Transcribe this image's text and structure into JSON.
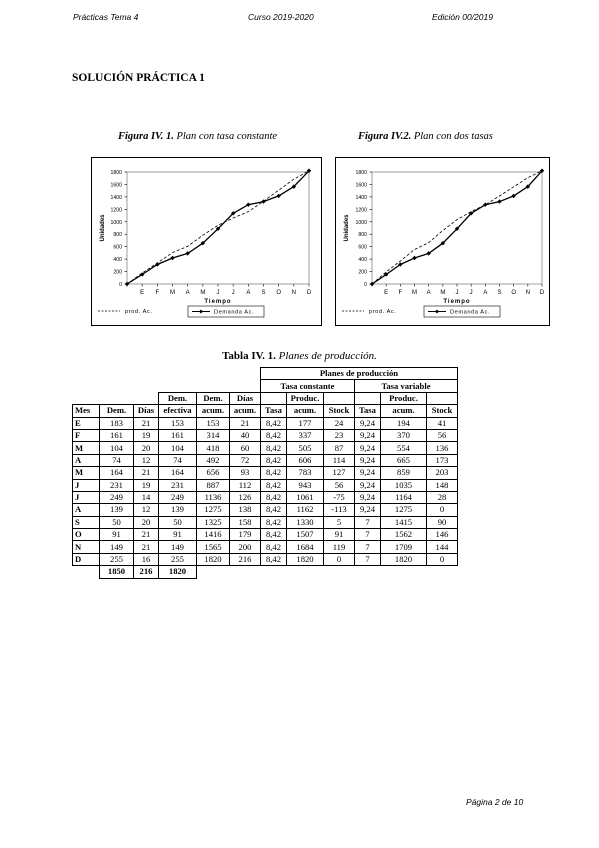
{
  "header": {
    "left": "Prácticas Tema 4",
    "center": "Curso 2019-2020",
    "right": "Edición 00/2019"
  },
  "section_title": "SOLUCIÓN PRÁCTICA 1",
  "figures": [
    {
      "label": "Figura IV. 1.",
      "caption": "Plan con tasa constante"
    },
    {
      "label": "Figura IV.2.",
      "caption": "Plan con dos tasas"
    }
  ],
  "chart_data": [
    {
      "type": "line",
      "title": "",
      "xlabel": "Tiempo",
      "ylabel": "Unidades",
      "categories": [
        "",
        "E",
        "F",
        "M",
        "A",
        "M",
        "J",
        "J",
        "A",
        "S",
        "O",
        "N",
        "D"
      ],
      "ylim": [
        0,
        1800
      ],
      "yticks": [
        0,
        200,
        400,
        600,
        800,
        1000,
        1200,
        1400,
        1600,
        1800
      ],
      "legend": [
        "prod. Ac.",
        "Demanda Ac."
      ],
      "legend_position": "bottom",
      "series": [
        {
          "name": "Demanda Ac.",
          "marker": "diamond",
          "line": "solid",
          "values": [
            0,
            153,
            314,
            418,
            492,
            656,
            887,
            1136,
            1275,
            1325,
            1416,
            1565,
            1820
          ]
        },
        {
          "name": "prod. Ac.",
          "marker": "none",
          "line": "dashed",
          "values": [
            0,
            177,
            337,
            505,
            606,
            783,
            943,
            1061,
            1162,
            1330,
            1507,
            1684,
            1820
          ]
        }
      ]
    },
    {
      "type": "line",
      "title": "",
      "xlabel": "Tiempo",
      "ylabel": "Unidades",
      "categories": [
        "",
        "E",
        "F",
        "M",
        "A",
        "M",
        "J",
        "J",
        "A",
        "S",
        "O",
        "N",
        "D"
      ],
      "ylim": [
        0,
        1800
      ],
      "yticks": [
        0,
        200,
        400,
        600,
        800,
        1000,
        1200,
        1400,
        1600,
        1800
      ],
      "legend": [
        "prod. Ac.",
        "Demanda Ac."
      ],
      "legend_position": "bottom",
      "series": [
        {
          "name": "Demanda Ac.",
          "marker": "diamond",
          "line": "solid",
          "values": [
            0,
            153,
            314,
            418,
            492,
            656,
            887,
            1136,
            1275,
            1325,
            1416,
            1565,
            1820
          ]
        },
        {
          "name": "prod. Ac.",
          "marker": "none",
          "line": "dashed",
          "values": [
            0,
            194,
            370,
            554,
            665,
            859,
            1035,
            1164,
            1275,
            1415,
            1562,
            1709,
            1820
          ]
        }
      ]
    }
  ],
  "table": {
    "label": "Tabla IV. 1.",
    "caption": "Planes de producción.",
    "group_header": "Planes de producción",
    "sub_constant": "Tasa constante",
    "sub_variable": "Tasa variable",
    "h_dem_efectiva_1": "Dem.",
    "h_dem_efectiva_2": "efectiva",
    "h_dem_acum_1": "Dem.",
    "h_dem_acum_2": "acum.",
    "h_dias_acum_1": "Días",
    "h_dias_acum_2": "acum.",
    "h_produc": "Produc.",
    "h_produc_b": "Produc.",
    "h_mes": "Mes",
    "h_dem": "Dem.",
    "h_dias": "Días",
    "h_tasa": "Tasa",
    "h_acum": "acum.",
    "h_stock": "Stock",
    "h_tasa_b": "Tasa",
    "h_acum_b": "acum.",
    "h_stock_b": "Stock",
    "rows": [
      [
        "E",
        "183",
        "21",
        "153",
        "153",
        "21",
        "8,42",
        "177",
        "24",
        "9,24",
        "194",
        "41"
      ],
      [
        "F",
        "161",
        "19",
        "161",
        "314",
        "40",
        "8,42",
        "337",
        "23",
        "9,24",
        "370",
        "56"
      ],
      [
        "M",
        "104",
        "20",
        "104",
        "418",
        "60",
        "8,42",
        "505",
        "87",
        "9,24",
        "554",
        "136"
      ],
      [
        "A",
        "74",
        "12",
        "74",
        "492",
        "72",
        "8,42",
        "606",
        "114",
        "9,24",
        "665",
        "173"
      ],
      [
        "M",
        "164",
        "21",
        "164",
        "656",
        "93",
        "8,42",
        "783",
        "127",
        "9,24",
        "859",
        "203"
      ],
      [
        "J",
        "231",
        "19",
        "231",
        "887",
        "112",
        "8,42",
        "943",
        "56",
        "9,24",
        "1035",
        "148"
      ],
      [
        "J",
        "249",
        "14",
        "249",
        "1136",
        "126",
        "8,42",
        "1061",
        "-75",
        "9,24",
        "1164",
        "28"
      ],
      [
        "A",
        "139",
        "12",
        "139",
        "1275",
        "138",
        "8,42",
        "1162",
        "-113",
        "9,24",
        "1275",
        "0"
      ],
      [
        "S",
        "50",
        "20",
        "50",
        "1325",
        "158",
        "8,42",
        "1330",
        "5",
        "7",
        "1415",
        "90"
      ],
      [
        "O",
        "91",
        "21",
        "91",
        "1416",
        "179",
        "8,42",
        "1507",
        "91",
        "7",
        "1562",
        "146"
      ],
      [
        "N",
        "149",
        "21",
        "149",
        "1565",
        "200",
        "8,42",
        "1684",
        "119",
        "7",
        "1709",
        "144"
      ],
      [
        "D",
        "255",
        "16",
        "255",
        "1820",
        "216",
        "8,42",
        "1820",
        "0",
        "7",
        "1820",
        "0"
      ]
    ],
    "totals": {
      "dem": "1850",
      "dias": "216",
      "dem_efectiva": "1820"
    }
  },
  "footer": "Página 2 de 10"
}
